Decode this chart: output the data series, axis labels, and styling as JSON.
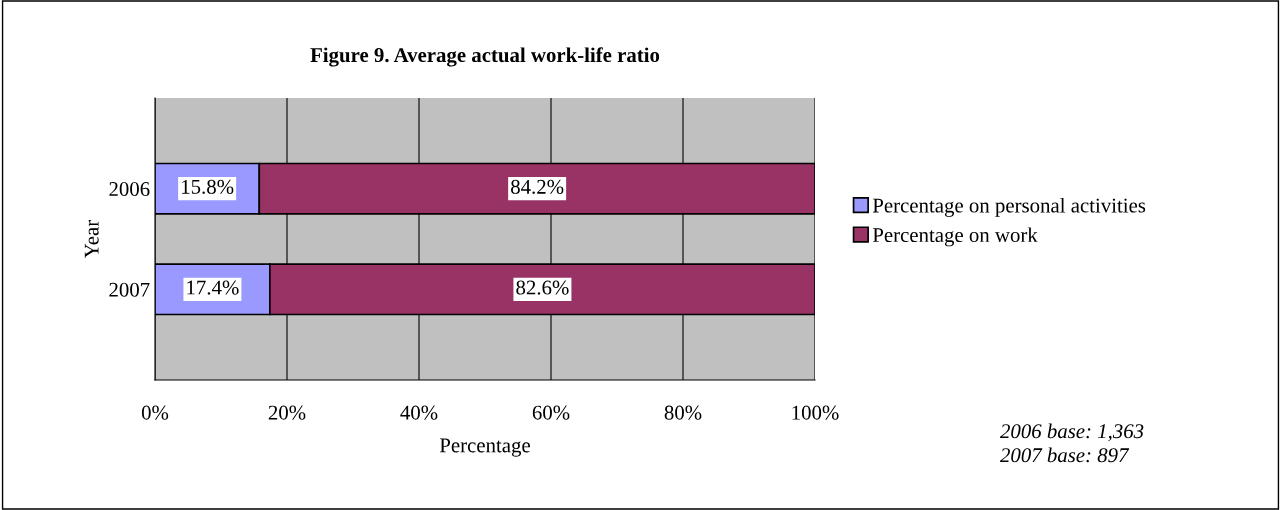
{
  "chart_data": {
    "type": "bar",
    "orientation": "horizontal",
    "stacked": true,
    "title": "Figure 9. Average actual work-life ratio",
    "xlabel": "Percentage",
    "ylabel": "Year",
    "categories": [
      "2006",
      "2007"
    ],
    "series": [
      {
        "name": "Percentage on personal activities",
        "color": "#9999ff",
        "values": [
          15.8,
          17.4
        ],
        "value_labels": [
          "15.8%",
          "17.4%"
        ]
      },
      {
        "name": "Percentage on work",
        "color": "#993366",
        "values": [
          84.2,
          82.6
        ],
        "value_labels": [
          "84.2%",
          "82.6%"
        ]
      }
    ],
    "xlim": [
      0,
      100
    ],
    "xticks": [
      {
        "value": 0,
        "label": "0%"
      },
      {
        "value": 20,
        "label": "20%"
      },
      {
        "value": 40,
        "label": "40%"
      },
      {
        "value": 60,
        "label": "60%"
      },
      {
        "value": 80,
        "label": "80%"
      },
      {
        "value": 100,
        "label": "100%"
      }
    ],
    "grid": "x",
    "legend": "right",
    "annotations": [
      "2006 base: 1,363",
      "2007 base: 897"
    ]
  }
}
